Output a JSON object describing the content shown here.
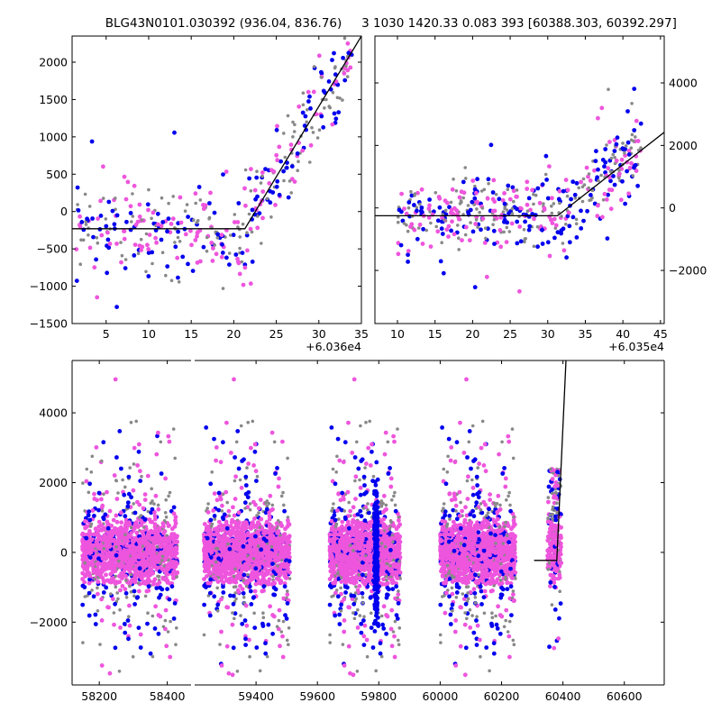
{
  "titles": {
    "left": "BLG43N0101.030392 (936.04, 836.76)",
    "right": "3 1030 1420.33 0.083 393 [60388.303, 60392.297]"
  },
  "colors": {
    "gray": "#888888",
    "blue": "#0000ee",
    "pink": "#ee55dd",
    "model": "#000000",
    "axis": "#000000"
  },
  "chart_data": [
    {
      "id": "top-left",
      "type": "scatter",
      "xlim": [
        1,
        35
      ],
      "ylim": [
        -1500,
        2350
      ],
      "xticks": [
        5,
        10,
        15,
        20,
        25,
        30,
        35
      ],
      "yticks": [
        -1500,
        -1000,
        -500,
        0,
        500,
        1000,
        1500,
        2000
      ],
      "offset_label": "+6.036e4",
      "model": [
        [
          1,
          -230
        ],
        [
          21.3,
          -230
        ],
        [
          35,
          2350
        ]
      ]
    },
    {
      "id": "top-right",
      "type": "scatter",
      "xlim": [
        7,
        45.5
      ],
      "ylim": [
        -3700,
        5500
      ],
      "xticks": [
        10,
        15,
        20,
        25,
        30,
        35,
        40,
        45
      ],
      "yticks": [
        -2000,
        0,
        2000,
        4000
      ],
      "offset_label": "+6.035e4",
      "model": [
        [
          7,
          -250
        ],
        [
          31.3,
          -250
        ],
        [
          45.5,
          2420
        ]
      ]
    },
    {
      "id": "bottom",
      "type": "scatter",
      "xlim": [
        58120,
        60730
      ],
      "ylim": [
        -3800,
        5500
      ],
      "xticks": [
        58200,
        58400,
        59400,
        59600,
        59800,
        60000,
        60200,
        60400,
        60600
      ],
      "yticks": [
        -2000,
        0,
        2000,
        4000
      ],
      "axis_break": [
        58470,
        59200
      ],
      "model": [
        [
          60306,
          -230
        ],
        [
          60380,
          -230
        ],
        [
          60410,
          5500
        ]
      ],
      "seasons": [
        {
          "start": 58150,
          "end": 58430,
          "n": 1700
        },
        {
          "start": 59230,
          "end": 59510,
          "n": 1800
        },
        {
          "start": 59640,
          "end": 59870,
          "n": 1800
        },
        {
          "start": 60000,
          "end": 60245,
          "n": 1800
        },
        {
          "start": 60350,
          "end": 60395,
          "n": 250
        }
      ]
    }
  ]
}
